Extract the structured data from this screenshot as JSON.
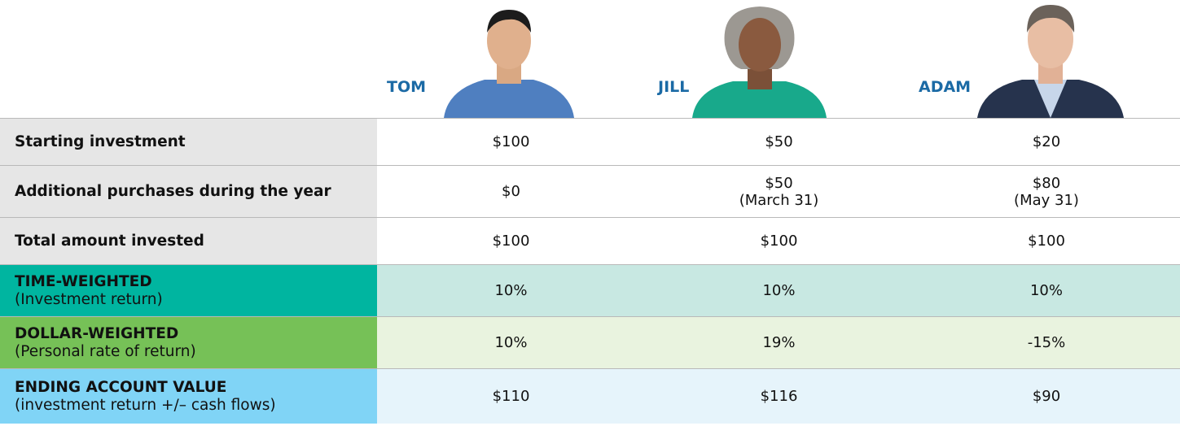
{
  "header": {
    "names": [
      "TOM",
      "JILL",
      "ADAM"
    ]
  },
  "rows": [
    {
      "label": "Starting investment",
      "cells": [
        [
          "$100"
        ],
        [
          "$50"
        ],
        [
          "$20"
        ]
      ]
    },
    {
      "label": "Additional purchases during the year",
      "cells": [
        [
          "$0"
        ],
        [
          "$50",
          "(March 31)"
        ],
        [
          "$80",
          "(May 31)"
        ]
      ]
    },
    {
      "label": "Total amount invested",
      "cells": [
        [
          "$100"
        ],
        [
          "$100"
        ],
        [
          "$100"
        ]
      ]
    },
    {
      "label": "TIME-WEIGHTED",
      "sublabel": "(Investment return)",
      "cells": [
        [
          "10%"
        ],
        [
          "10%"
        ],
        [
          "10%"
        ]
      ]
    },
    {
      "label": "DOLLAR-WEIGHTED",
      "sublabel": "(Personal rate of return)",
      "cells": [
        [
          "10%"
        ],
        [
          "19%"
        ],
        [
          "-15%"
        ]
      ]
    },
    {
      "label": "ENDING ACCOUNT VALUE",
      "sublabel": "(investment return +/–  cash flows)",
      "cells": [
        [
          "$110"
        ],
        [
          "$116"
        ],
        [
          "$90"
        ]
      ]
    }
  ]
}
